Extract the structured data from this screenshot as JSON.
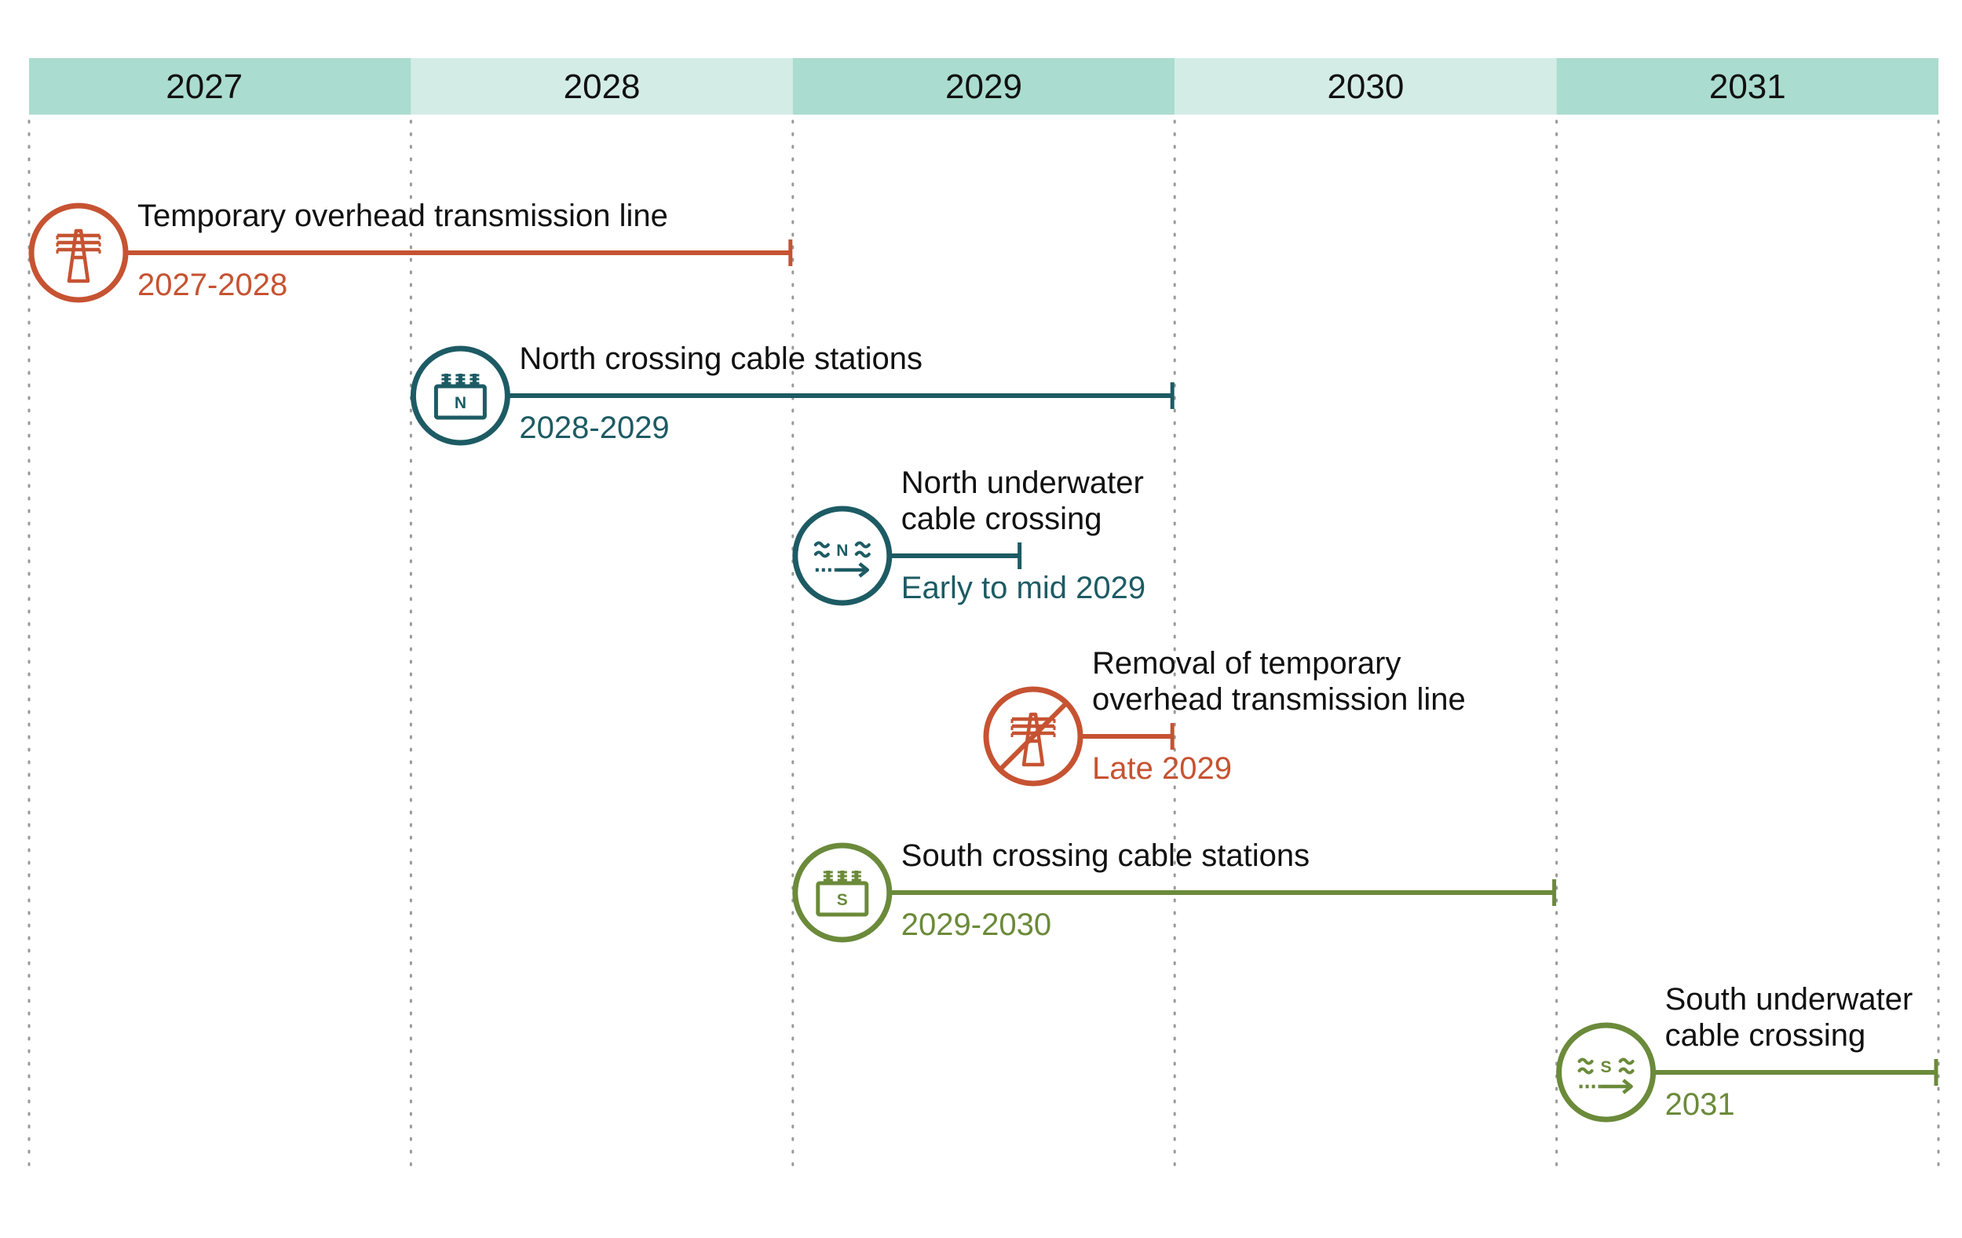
{
  "years": [
    "2027",
    "2028",
    "2029",
    "2030",
    "2031"
  ],
  "colors": {
    "header_dark": "#aadccf",
    "header_light": "#d4ece6",
    "gridline": "#9a9a9a",
    "orange": "#c65332",
    "teal": "#1d5b64",
    "olive": "#6b8a3a"
  },
  "tasks": [
    {
      "id": "overhead-line",
      "title": [
        "Temporary overhead transmission line"
      ],
      "date": "2027-2028",
      "color": "orange",
      "icon": "transmission-tower-icon",
      "icon_letter": "",
      "start": 2027.0,
      "end": 2029.0
    },
    {
      "id": "north-stations",
      "title": [
        "North crossing cable stations"
      ],
      "date": "2028-2029",
      "color": "teal",
      "icon": "cable-station-icon",
      "icon_letter": "N",
      "start": 2028.0,
      "end": 2030.0
    },
    {
      "id": "north-underwater",
      "title": [
        "North underwater",
        "cable crossing"
      ],
      "date": "Early to mid 2029",
      "color": "teal",
      "icon": "underwater-cable-icon",
      "icon_letter": "N",
      "start": 2029.0,
      "end": 2029.6
    },
    {
      "id": "removal-overhead",
      "title": [
        "Removal of temporary",
        "overhead transmission line"
      ],
      "date": "Late 2029",
      "color": "orange",
      "icon": "tower-removal-icon",
      "icon_letter": "",
      "start": 2029.5,
      "end": 2030.0
    },
    {
      "id": "south-stations",
      "title": [
        "South crossing cable stations"
      ],
      "date": "2029-2030",
      "color": "olive",
      "icon": "cable-station-icon",
      "icon_letter": "S",
      "start": 2029.0,
      "end": 2031.0
    },
    {
      "id": "south-underwater",
      "title": [
        "South underwater",
        "cable crossing"
      ],
      "date": "2031",
      "color": "olive",
      "icon": "underwater-cable-icon",
      "icon_letter": "S",
      "start": 2031.0,
      "end": 2032.0
    }
  ]
}
